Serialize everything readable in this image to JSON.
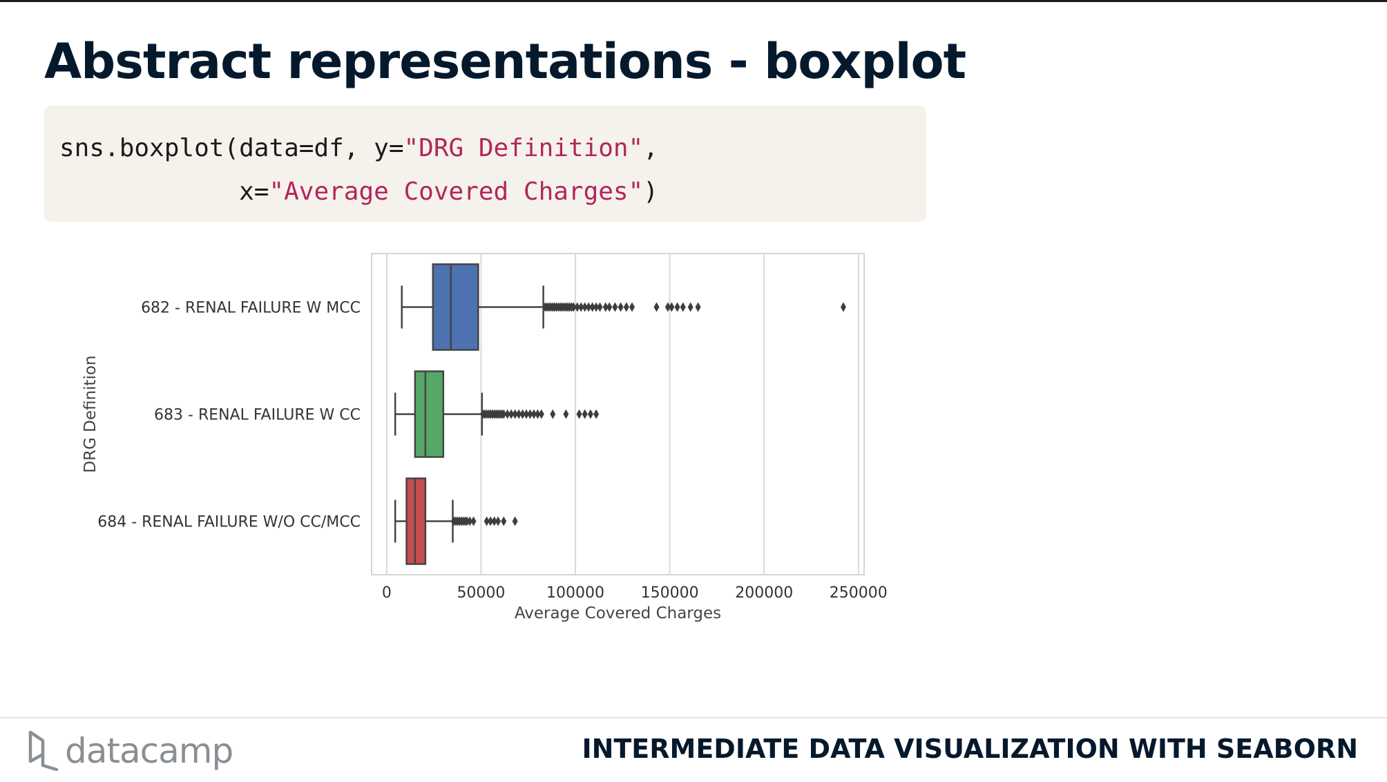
{
  "slide": {
    "title": "Abstract representations - boxplot",
    "code_line1_a": "sns.boxplot(data=df, y=",
    "code_line1_str": "\"DRG Definition\"",
    "code_line1_b": ",",
    "code_line2_a": "            x=",
    "code_line2_str": "\"Average Covered Charges\"",
    "code_line2_b": ")"
  },
  "footer": {
    "brand": "datacamp",
    "course": "INTERMEDIATE DATA VISUALIZATION WITH SEABORN",
    "logo_icon": "datacamp-logo-icon"
  },
  "chart_data": {
    "type": "boxplot",
    "orientation": "horizontal",
    "xlabel": "Average Covered Charges",
    "ylabel": "DRG Definition",
    "xlim": [
      -8000,
      253000
    ],
    "xticks": [
      0,
      50000,
      100000,
      150000,
      200000,
      250000
    ],
    "xtick_labels": [
      "0",
      "50000",
      "100000",
      "150000",
      "200000",
      "250000"
    ],
    "grid": "vertical",
    "categories": [
      "682 - RENAL FAILURE W MCC",
      "683 - RENAL FAILURE W CC",
      "684 - RENAL FAILURE W/O CC/MCC"
    ],
    "colors": [
      "#4c72b0",
      "#55a868",
      "#c44e52"
    ],
    "boxes": [
      {
        "whisker_low": 8000,
        "q1": 24500,
        "median": 34000,
        "q3": 48500,
        "whisker_high": 83000,
        "outliers": [
          84000,
          85000,
          86000,
          87000,
          88000,
          89000,
          90000,
          91000,
          92000,
          93000,
          94000,
          95000,
          96000,
          97000,
          98000,
          99000,
          101000,
          103000,
          105000,
          107000,
          109000,
          111000,
          113000,
          116000,
          118000,
          121000,
          124000,
          127000,
          130000,
          143000,
          149000,
          151000,
          154000,
          157000,
          161000,
          165000,
          242000
        ]
      },
      {
        "whisker_low": 4500,
        "q1": 15000,
        "median": 20500,
        "q3": 30000,
        "whisker_high": 50500,
        "outliers": [
          51000,
          52000,
          53000,
          54000,
          55000,
          56000,
          57000,
          58000,
          59000,
          60000,
          61000,
          62000,
          64000,
          66000,
          68000,
          70000,
          72000,
          74000,
          76000,
          78000,
          80000,
          82000,
          88000,
          95000,
          102000,
          105000,
          108000,
          111000
        ]
      },
      {
        "whisker_low": 4500,
        "q1": 10500,
        "median": 15000,
        "q3": 20500,
        "whisker_high": 35000,
        "outliers": [
          35500,
          36500,
          37500,
          38500,
          39500,
          40500,
          41500,
          42500,
          44000,
          46000,
          53000,
          55000,
          57000,
          59000,
          62000,
          68000
        ]
      }
    ]
  }
}
